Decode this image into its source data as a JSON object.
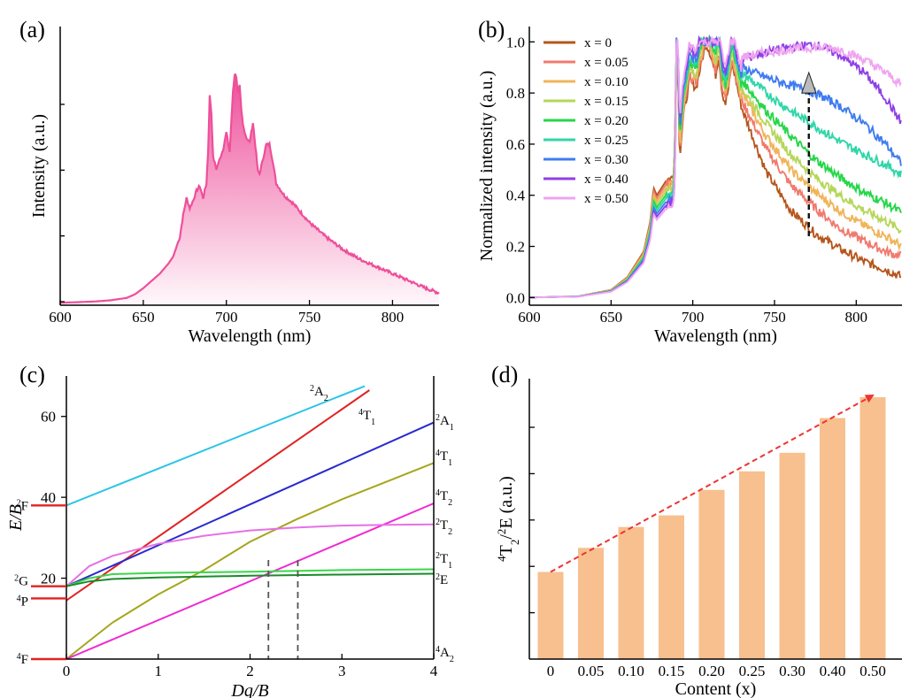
{
  "chart_data": [
    {
      "panel": "(a)",
      "type": "area",
      "xlabel": "Wavelength (nm)",
      "ylabel": "Intensity (a.u.)",
      "xlim": [
        600,
        828
      ],
      "ylim": [
        0,
        1
      ],
      "xticks": [
        "600",
        "650",
        "700",
        "750",
        "800"
      ],
      "color": "#ee4f9a",
      "series": [
        {
          "x": [
            600,
            620,
            630,
            640,
            645,
            650,
            655,
            660,
            665,
            668,
            670,
            672,
            674,
            676,
            678,
            680,
            682,
            684,
            686,
            688,
            689,
            690,
            691,
            692,
            694,
            696,
            698,
            700,
            702,
            704,
            705,
            706,
            707,
            708,
            709,
            710,
            712,
            714,
            716,
            718,
            719,
            720,
            722,
            724,
            726,
            728,
            730,
            735,
            740,
            745,
            750,
            760,
            770,
            780,
            790,
            800,
            810,
            820,
            828
          ],
          "y": [
            0.01,
            0.015,
            0.02,
            0.03,
            0.045,
            0.07,
            0.1,
            0.13,
            0.17,
            0.2,
            0.24,
            0.28,
            0.37,
            0.44,
            0.4,
            0.43,
            0.47,
            0.49,
            0.44,
            0.5,
            0.63,
            0.86,
            0.79,
            0.61,
            0.56,
            0.6,
            0.64,
            0.71,
            0.63,
            0.88,
            0.95,
            0.94,
            0.87,
            0.9,
            0.8,
            0.74,
            0.69,
            0.67,
            0.75,
            0.62,
            0.55,
            0.54,
            0.6,
            0.66,
            0.66,
            0.59,
            0.5,
            0.45,
            0.42,
            0.38,
            0.34,
            0.28,
            0.23,
            0.19,
            0.16,
            0.13,
            0.1,
            0.07,
            0.05
          ]
        }
      ]
    },
    {
      "panel": "(b)",
      "type": "line",
      "xlabel": "Wavelength (nm)",
      "ylabel": "Normalized intensity (a.u.)",
      "xlim": [
        600,
        828
      ],
      "ylim": [
        -0.03,
        1.06
      ],
      "xticks": [
        "600",
        "650",
        "700",
        "750",
        "800"
      ],
      "yticks": [
        "0.0",
        "0.2",
        "0.4",
        "0.6",
        "0.8",
        "1.0"
      ],
      "legend_position": "top-left",
      "series": [
        {
          "name": "x = 0",
          "color": "#b5561d",
          "tail": [
            0.74,
            0.49,
            0.34,
            0.25,
            0.19,
            0.14,
            0.11,
            0.08
          ]
        },
        {
          "name": "x = 0.05",
          "color": "#f07a6e",
          "tail": [
            0.77,
            0.58,
            0.44,
            0.35,
            0.27,
            0.22,
            0.18,
            0.16
          ]
        },
        {
          "name": "x = 0.10",
          "color": "#f0b45a",
          "tail": [
            0.8,
            0.63,
            0.5,
            0.41,
            0.34,
            0.28,
            0.24,
            0.2
          ]
        },
        {
          "name": "x = 0.15",
          "color": "#b6d65a",
          "tail": [
            0.82,
            0.68,
            0.56,
            0.47,
            0.4,
            0.34,
            0.3,
            0.26
          ]
        },
        {
          "name": "x = 0.20",
          "color": "#27d64a",
          "tail": [
            0.85,
            0.73,
            0.63,
            0.54,
            0.47,
            0.41,
            0.37,
            0.33
          ]
        },
        {
          "name": "x = 0.25",
          "color": "#2fd6a8",
          "tail": [
            0.88,
            0.8,
            0.73,
            0.67,
            0.61,
            0.56,
            0.52,
            0.48
          ]
        },
        {
          "name": "x = 0.30",
          "color": "#3f7cf0",
          "tail": [
            0.9,
            0.86,
            0.83,
            0.8,
            0.75,
            0.68,
            0.6,
            0.52
          ]
        },
        {
          "name": "x = 0.40",
          "color": "#8e3fe6",
          "tail": [
            0.93,
            0.96,
            0.98,
            0.99,
            0.95,
            0.88,
            0.78,
            0.68
          ]
        },
        {
          "name": "x = 0.50",
          "color": "#f0a4f0",
          "tail": [
            0.94,
            0.96,
            0.97,
            0.98,
            0.97,
            0.93,
            0.88,
            0.83
          ]
        }
      ]
    },
    {
      "panel": "(c)",
      "type": "line",
      "xlabel": "Dq/B",
      "ylabel": "E/B",
      "xlim": [
        0,
        4
      ],
      "ylim": [
        0,
        70
      ],
      "xticks": [
        "0",
        "1",
        "2",
        "3",
        "4"
      ],
      "yticks": [
        "20",
        "40",
        "60"
      ],
      "left_levels": [
        "2F",
        "2G",
        "4P",
        "4F"
      ],
      "right_levels": [
        "2A2",
        "4T1",
        "2A1",
        "4T1",
        "4T2",
        "2T2",
        "2T1",
        "2E",
        "4A2"
      ],
      "vertical_lines_x": [
        2.2,
        2.52
      ],
      "series": [
        {
          "name": "2A2",
          "color": "#2ec5e6",
          "x": [
            0,
            3.25
          ],
          "y": [
            38,
            67.5
          ]
        },
        {
          "name": "4T1",
          "color": "#e02222",
          "x": [
            0,
            3.3
          ],
          "y": [
            14.5,
            66.5
          ]
        },
        {
          "name": "2A1",
          "color": "#2a2ad0",
          "x": [
            0,
            4
          ],
          "y": [
            18,
            58.5
          ]
        },
        {
          "name": "4T1",
          "color": "#a6a61c",
          "x": [
            0,
            0.25,
            0.5,
            0.75,
            1,
            1.5,
            2,
            2.5,
            3,
            3.5,
            4
          ],
          "y": [
            0,
            4.5,
            9,
            12.5,
            16,
            22,
            29,
            34.5,
            39.5,
            44,
            48.5
          ]
        },
        {
          "name": "4T2",
          "color": "#f02ad0",
          "x": [
            0,
            4
          ],
          "y": [
            0,
            38.5
          ]
        },
        {
          "name": "2T2",
          "color": "#e670e6",
          "x": [
            0,
            0.25,
            0.5,
            1,
            1.5,
            2,
            2.5,
            3,
            3.5,
            4
          ],
          "y": [
            18,
            23,
            25.5,
            28.5,
            30.5,
            31.8,
            32.5,
            33,
            33.2,
            33.3
          ]
        },
        {
          "name": "2T1",
          "color": "#3ad64a",
          "x": [
            0,
            0.25,
            0.5,
            1,
            2,
            3,
            4
          ],
          "y": [
            18,
            20,
            21,
            21.3,
            21.6,
            22,
            22.2
          ]
        },
        {
          "name": "2E",
          "color": "#1a8a2a",
          "x": [
            0,
            0.25,
            0.5,
            1,
            2,
            3,
            4
          ],
          "y": [
            18,
            19.2,
            19.8,
            20.2,
            20.6,
            20.9,
            21.1
          ]
        }
      ]
    },
    {
      "panel": "(d)",
      "type": "bar",
      "xlabel": "Content (x)",
      "ylabel": "4T2/2E (a.u.)",
      "categories": [
        "0",
        "0.05",
        "0.10",
        "0.15",
        "0.20",
        "0.25",
        "0.30",
        "0.40",
        "0.50"
      ],
      "values": [
        1.88,
        2.4,
        2.85,
        3.1,
        3.65,
        4.05,
        4.45,
        5.2,
        5.65
      ],
      "ylim": [
        0,
        6.05
      ],
      "bar_color": "#f7c08e",
      "trend_color": "#ee3333"
    }
  ]
}
